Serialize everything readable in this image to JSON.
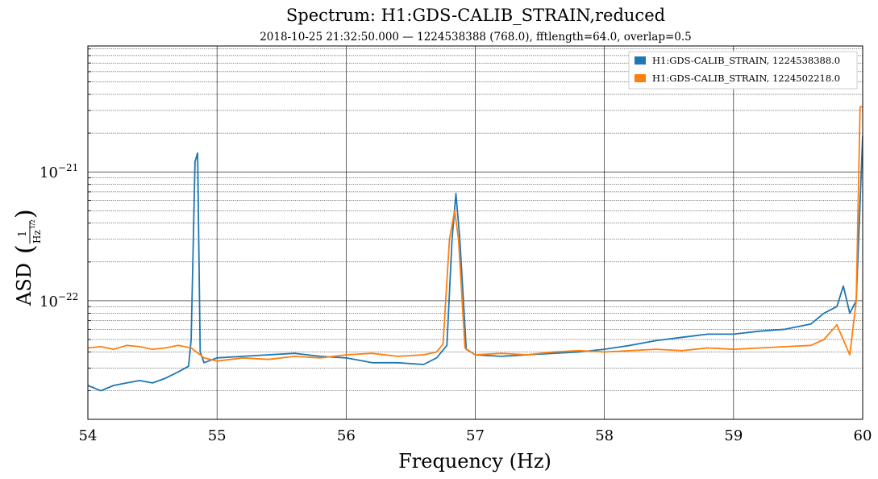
{
  "chart_data": {
    "type": "line",
    "title": "Spectrum: H1:GDS-CALIB_STRAIN,reduced",
    "subtitle": "2018-10-25 21:32:50.000 — 1224538388 (768.0), fftlength=64.0, overlap=0.5",
    "xlabel": "Frequency (Hz)",
    "ylabel": "ASD",
    "ylabel_unit": {
      "numerator": "1",
      "denominator": "Hz",
      "exponent": "1/2"
    },
    "x_scale": "linear",
    "y_scale": "log",
    "xlim": [
      54,
      60
    ],
    "ylim": [
      1.2e-23,
      9.5e-21
    ],
    "x_ticks": [
      54,
      55,
      56,
      57,
      58,
      59,
      60
    ],
    "y_ticks": [
      {
        "value": 1e-21,
        "base": "10",
        "exp": "−21"
      },
      {
        "value": 1e-22,
        "base": "10",
        "exp": "−22"
      }
    ],
    "grid": true,
    "legend_position": "top-right",
    "series": [
      {
        "name": "H1:GDS-CALIB_STRAIN, 1224538388.0",
        "color": "#1f77b4",
        "points": [
          [
            54.0,
            2.2e-23
          ],
          [
            54.1,
            2e-23
          ],
          [
            54.2,
            2.2e-23
          ],
          [
            54.3,
            2.3e-23
          ],
          [
            54.4,
            2.4e-23
          ],
          [
            54.5,
            2.3e-23
          ],
          [
            54.6,
            2.5e-23
          ],
          [
            54.7,
            2.8e-23
          ],
          [
            54.78,
            3.1e-23
          ],
          [
            54.8,
            5e-23
          ],
          [
            54.83,
            1.2e-21
          ],
          [
            54.85,
            1.4e-21
          ],
          [
            54.87,
            4e-23
          ],
          [
            54.9,
            3.3e-23
          ],
          [
            55.0,
            3.6e-23
          ],
          [
            55.2,
            3.7e-23
          ],
          [
            55.4,
            3.8e-23
          ],
          [
            55.6,
            3.9e-23
          ],
          [
            55.8,
            3.7e-23
          ],
          [
            56.0,
            3.6e-23
          ],
          [
            56.2,
            3.3e-23
          ],
          [
            56.4,
            3.3e-23
          ],
          [
            56.6,
            3.2e-23
          ],
          [
            56.7,
            3.6e-23
          ],
          [
            56.78,
            4.5e-23
          ],
          [
            56.82,
            3e-22
          ],
          [
            56.85,
            6.8e-22
          ],
          [
            56.88,
            3e-22
          ],
          [
            56.93,
            4.2e-23
          ],
          [
            57.0,
            3.8e-23
          ],
          [
            57.2,
            3.7e-23
          ],
          [
            57.4,
            3.8e-23
          ],
          [
            57.6,
            3.9e-23
          ],
          [
            57.8,
            4e-23
          ],
          [
            58.0,
            4.2e-23
          ],
          [
            58.2,
            4.5e-23
          ],
          [
            58.4,
            4.9e-23
          ],
          [
            58.6,
            5.2e-23
          ],
          [
            58.8,
            5.5e-23
          ],
          [
            59.0,
            5.5e-23
          ],
          [
            59.2,
            5.8e-23
          ],
          [
            59.4,
            6e-23
          ],
          [
            59.6,
            6.6e-23
          ],
          [
            59.7,
            8e-23
          ],
          [
            59.8,
            9e-23
          ],
          [
            59.85,
            1.3e-22
          ],
          [
            59.9,
            8e-23
          ],
          [
            59.95,
            1e-22
          ],
          [
            60.0,
            1.9e-21
          ]
        ]
      },
      {
        "name": "H1:GDS-CALIB_STRAIN, 1224502218.0",
        "color": "#ff7f0e",
        "points": [
          [
            54.0,
            4.3e-23
          ],
          [
            54.1,
            4.4e-23
          ],
          [
            54.2,
            4.2e-23
          ],
          [
            54.3,
            4.5e-23
          ],
          [
            54.4,
            4.4e-23
          ],
          [
            54.5,
            4.2e-23
          ],
          [
            54.6,
            4.3e-23
          ],
          [
            54.7,
            4.5e-23
          ],
          [
            54.8,
            4.3e-23
          ],
          [
            54.9,
            3.6e-23
          ],
          [
            55.0,
            3.4e-23
          ],
          [
            55.2,
            3.6e-23
          ],
          [
            55.4,
            3.5e-23
          ],
          [
            55.6,
            3.7e-23
          ],
          [
            55.8,
            3.6e-23
          ],
          [
            56.0,
            3.8e-23
          ],
          [
            56.2,
            3.9e-23
          ],
          [
            56.4,
            3.7e-23
          ],
          [
            56.6,
            3.8e-23
          ],
          [
            56.7,
            4e-23
          ],
          [
            56.75,
            4.6e-23
          ],
          [
            56.8,
            3e-22
          ],
          [
            56.84,
            5e-22
          ],
          [
            56.87,
            3e-22
          ],
          [
            56.92,
            4.3e-23
          ],
          [
            57.0,
            3.8e-23
          ],
          [
            57.2,
            3.9e-23
          ],
          [
            57.4,
            3.8e-23
          ],
          [
            57.6,
            4e-23
          ],
          [
            57.8,
            4.1e-23
          ],
          [
            58.0,
            4e-23
          ],
          [
            58.2,
            4.1e-23
          ],
          [
            58.4,
            4.2e-23
          ],
          [
            58.6,
            4.1e-23
          ],
          [
            58.8,
            4.3e-23
          ],
          [
            59.0,
            4.2e-23
          ],
          [
            59.2,
            4.3e-23
          ],
          [
            59.4,
            4.4e-23
          ],
          [
            59.6,
            4.5e-23
          ],
          [
            59.7,
            5e-23
          ],
          [
            59.8,
            6.5e-23
          ],
          [
            59.9,
            3.8e-23
          ],
          [
            59.95,
            1e-22
          ],
          [
            59.98,
            3.2e-21
          ],
          [
            60.0,
            3.2e-21
          ]
        ]
      }
    ]
  }
}
